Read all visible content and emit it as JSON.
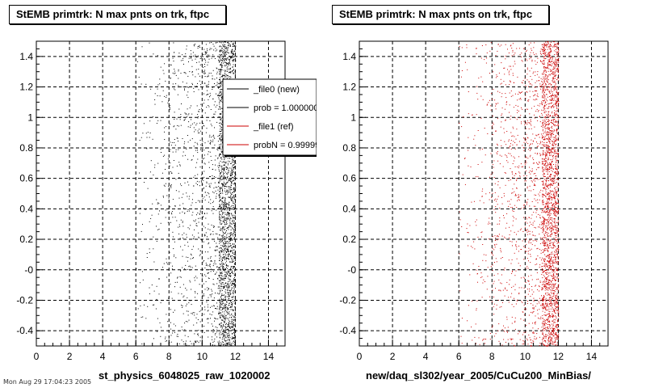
{
  "colors": {
    "new": "#000000",
    "ref": "#cc0000",
    "grid": "#000000"
  },
  "chart_data": [
    {
      "type": "scatter",
      "title": "StEMB primtrk: N max pnts on trk, ftpc",
      "xlabel": "st_physics_6048025_raw_1020002",
      "ylabel": "",
      "xlim": [
        0,
        15
      ],
      "ylim": [
        -0.5,
        1.5
      ],
      "x_ticks": [
        0,
        2,
        4,
        6,
        8,
        10,
        12,
        14
      ],
      "y_ticks": [
        -0.4,
        -0.2,
        0,
        0.2,
        0.4,
        0.6,
        0.8,
        1,
        1.2,
        1.4
      ],
      "y_tick_labels": [
        "-0.4",
        "-0.2",
        "-0",
        "0.2",
        "0.4",
        "0.6",
        "0.8",
        "1",
        "1.2",
        "1.4"
      ],
      "grid": true,
      "series": [
        {
          "name": "_file0 (new)",
          "color": "#000000",
          "density": [
            {
              "x": 6.5,
              "weight": 1
            },
            {
              "x": 7.5,
              "weight": 2
            },
            {
              "x": 8.5,
              "weight": 4
            },
            {
              "x": 9.5,
              "weight": 5
            },
            {
              "x": 10.5,
              "weight": 8
            },
            {
              "x": 11.5,
              "weight": 22
            }
          ]
        }
      ],
      "legend": {
        "placement": "top-right",
        "entries": [
          {
            "label": "_file0 (new)",
            "color": "#000000"
          },
          {
            "label": "prob = 1.000000",
            "color": "#000000"
          },
          {
            "label": "_file1 (ref)",
            "color": "#cc0000"
          },
          {
            "label": "probN = 0.999999",
            "color": "#cc0000"
          }
        ]
      }
    },
    {
      "type": "scatter",
      "title": "StEMB primtrk: N max pnts on trk, ftpc",
      "xlabel": "new/daq_sl302/year_2005/CuCu200_MinBias/",
      "ylabel": "",
      "xlim": [
        0,
        15
      ],
      "ylim": [
        -0.5,
        1.5
      ],
      "x_ticks": [
        0,
        2,
        4,
        6,
        8,
        10,
        12,
        14
      ],
      "y_ticks": [
        -0.4,
        -0.2,
        0,
        0.2,
        0.4,
        0.6,
        0.8,
        1,
        1.2,
        1.4
      ],
      "y_tick_labels": [
        "-0.4",
        "-0.2",
        "-0",
        "0.2",
        "0.4",
        "0.6",
        "0.8",
        "1",
        "1.2",
        "1.4"
      ],
      "grid": true,
      "series": [
        {
          "name": "_file1 (ref)",
          "color": "#cc0000",
          "density": [
            {
              "x": 6.5,
              "weight": 1
            },
            {
              "x": 7.5,
              "weight": 2
            },
            {
              "x": 8.5,
              "weight": 4
            },
            {
              "x": 9.5,
              "weight": 5
            },
            {
              "x": 10.5,
              "weight": 8
            },
            {
              "x": 11.5,
              "weight": 22
            }
          ]
        }
      ]
    }
  ],
  "footer": "Mon Aug 29 17:04:23 2005"
}
